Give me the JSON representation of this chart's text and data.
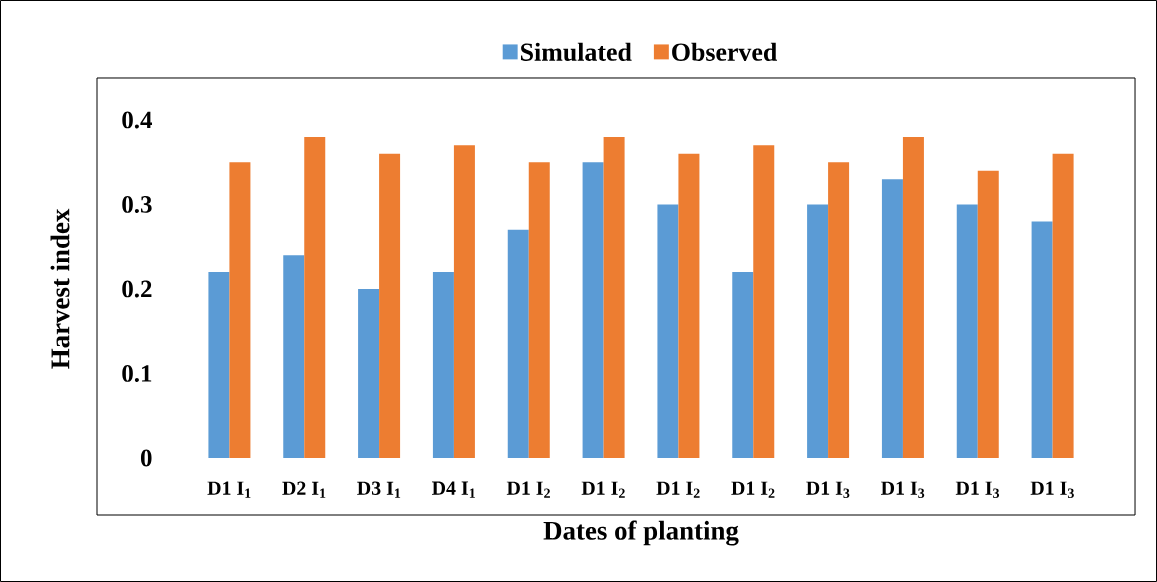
{
  "chart_data": {
    "type": "bar",
    "xlabel": "Dates of planting",
    "ylabel": "Harvest index",
    "categories": [
      "D1 I$_{1}$",
      "D2 I$_{1}$",
      "D3 I$_{1}$",
      "D4 I$_{1}$",
      "D1 I$_{2}$",
      "D1 I$_{2}$",
      "D1 I$_{2}$",
      "D1 I$_{2}$",
      "D1 I$_{3}$",
      "D1 I$_{3}$",
      "D1 I$_{3}$",
      "D1 I$_{3}$"
    ],
    "series": [
      {
        "name": "Simulated",
        "color": "#5b9bd5",
        "values": [
          0.22,
          0.24,
          0.2,
          0.22,
          0.27,
          0.35,
          0.3,
          0.22,
          0.3,
          0.33,
          0.3,
          0.28
        ]
      },
      {
        "name": "Observed",
        "color": "#ed7d31",
        "values": [
          0.35,
          0.38,
          0.36,
          0.37,
          0.35,
          0.38,
          0.36,
          0.37,
          0.35,
          0.38,
          0.34,
          0.36
        ]
      }
    ],
    "ylim": [
      0,
      0.4
    ],
    "yticks": [
      0,
      0.1,
      0.2,
      0.3,
      0.4
    ],
    "legend": "top",
    "grid": false
  }
}
